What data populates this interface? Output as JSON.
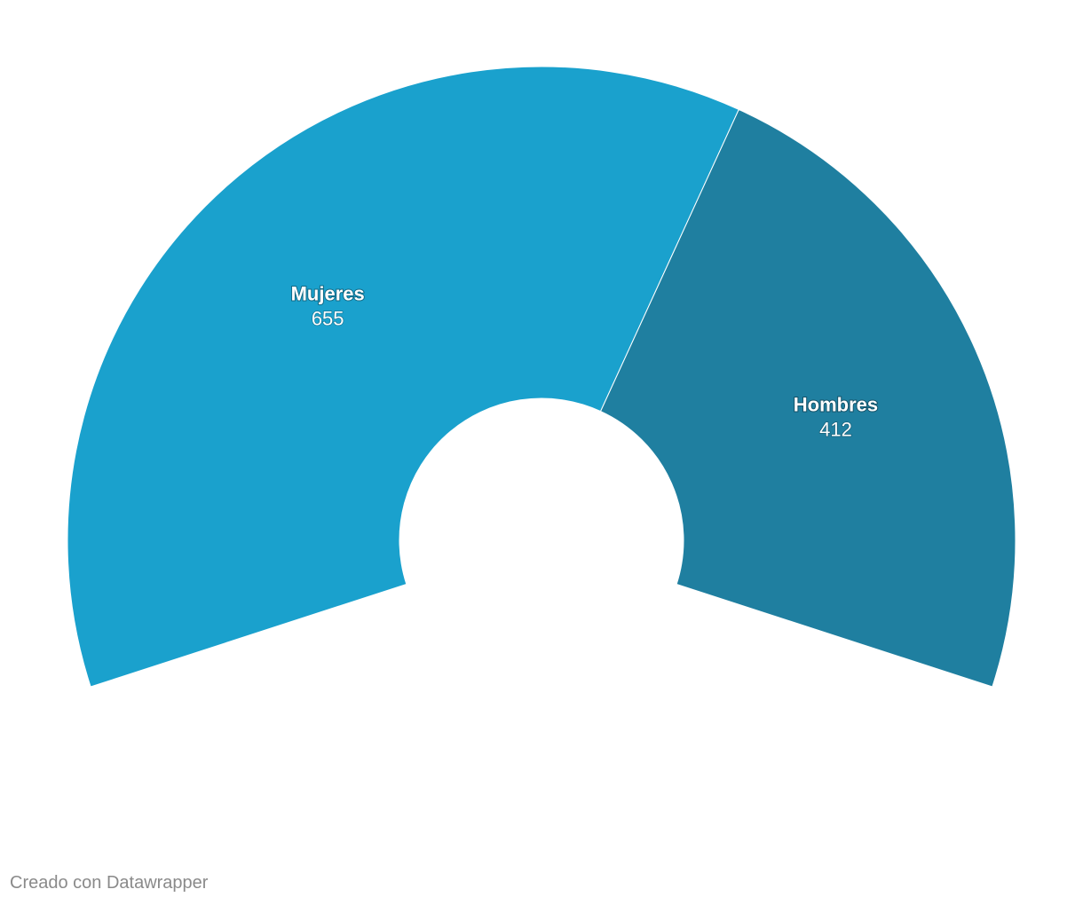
{
  "chart_data": {
    "type": "pie",
    "variant": "semi-donut",
    "slices": [
      {
        "name": "Mujeres",
        "value": 655,
        "value_label": "655",
        "color": "#1aa1cd"
      },
      {
        "name": "Hombres",
        "value": 412,
        "value_label": "412",
        "color": "#1f7fa0"
      }
    ],
    "legend": "none"
  },
  "footer": {
    "credit": "Creado con Datawrapper"
  }
}
